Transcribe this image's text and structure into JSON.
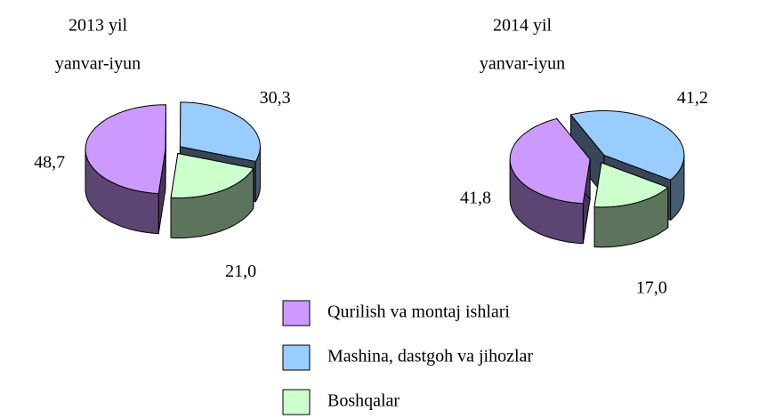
{
  "chart_data": [
    {
      "type": "pie",
      "title": "2013 yil",
      "subtitle": "yanvar-iyun",
      "values": [
        48.7,
        30.3,
        21.0
      ],
      "value_labels": [
        "48,7",
        "30,3",
        "21,0"
      ],
      "colors": [
        "#cc99ff",
        "#99ccff",
        "#ccffcc"
      ]
    },
    {
      "type": "pie",
      "title": "2014 yil",
      "subtitle": "yanvar-iyun",
      "values": [
        41.8,
        41.2,
        17.0
      ],
      "value_labels": [
        "41,8",
        "41,2",
        "17,0"
      ],
      "colors": [
        "#cc99ff",
        "#99ccff",
        "#ccffcc"
      ]
    }
  ],
  "legend": [
    "Qurilish va montaj ishlari",
    "Mashina, dastgoh va jihozlar",
    "Boshqalar"
  ]
}
